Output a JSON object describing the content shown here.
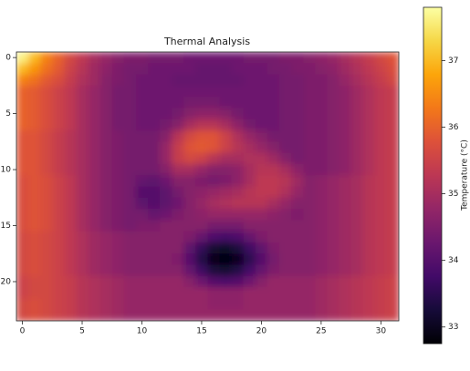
{
  "chart_data": {
    "type": "heatmap",
    "title": "Thermal Analysis",
    "cmap": "inferno",
    "xlim": [
      -0.5,
      31.5
    ],
    "ylim": [
      23.5,
      -0.5
    ],
    "xticks": [
      0,
      5,
      10,
      15,
      20,
      25,
      30
    ],
    "yticks": [
      0,
      5,
      10,
      15,
      20
    ],
    "colorbar": {
      "label": "Temperature (°C)",
      "lim": [
        32.75,
        37.8
      ],
      "ticks": [
        33,
        34,
        35,
        36,
        37
      ]
    },
    "z": [
      [
        37.6,
        37.0,
        36.4,
        36.0,
        35.6,
        35.3,
        35.0,
        34.8,
        34.6,
        34.5,
        34.5,
        34.4,
        34.4,
        34.4,
        34.3,
        34.3,
        34.3,
        34.3,
        34.3,
        34.4,
        34.4,
        34.4,
        34.5,
        34.5,
        34.6,
        34.7,
        34.8,
        35.0,
        35.2,
        35.4,
        35.6,
        35.8
      ],
      [
        37.0,
        36.6,
        36.2,
        35.9,
        35.5,
        35.2,
        34.9,
        34.7,
        34.5,
        34.4,
        34.4,
        34.3,
        34.3,
        34.3,
        34.3,
        34.2,
        34.2,
        34.2,
        34.3,
        34.3,
        34.3,
        34.4,
        34.4,
        34.5,
        34.5,
        34.6,
        34.7,
        34.9,
        35.1,
        35.3,
        35.5,
        35.7
      ],
      [
        36.4,
        36.2,
        35.9,
        35.7,
        35.4,
        35.1,
        34.9,
        34.6,
        34.5,
        34.4,
        34.3,
        34.3,
        34.3,
        34.2,
        34.2,
        34.2,
        34.2,
        34.2,
        34.2,
        34.3,
        34.3,
        34.3,
        34.4,
        34.4,
        34.5,
        34.5,
        34.6,
        34.8,
        35.0,
        35.2,
        35.4,
        35.6
      ],
      [
        36.0,
        35.9,
        35.7,
        35.5,
        35.3,
        35.0,
        34.8,
        34.6,
        34.4,
        34.4,
        34.3,
        34.3,
        34.3,
        34.3,
        34.3,
        34.3,
        34.3,
        34.3,
        34.3,
        34.3,
        34.3,
        34.3,
        34.4,
        34.4,
        34.5,
        34.5,
        34.6,
        34.7,
        34.9,
        35.1,
        35.3,
        35.4
      ],
      [
        36.0,
        35.9,
        35.7,
        35.5,
        35.3,
        35.0,
        34.8,
        34.6,
        34.4,
        34.4,
        34.3,
        34.3,
        34.3,
        34.3,
        34.4,
        34.4,
        34.4,
        34.3,
        34.3,
        34.3,
        34.3,
        34.3,
        34.4,
        34.4,
        34.5,
        34.5,
        34.6,
        34.7,
        34.9,
        35.1,
        35.3,
        35.4
      ],
      [
        36.0,
        35.9,
        35.7,
        35.5,
        35.3,
        35.0,
        34.8,
        34.6,
        34.4,
        34.4,
        34.3,
        34.3,
        34.3,
        34.4,
        34.6,
        34.7,
        34.7,
        34.6,
        34.4,
        34.3,
        34.3,
        34.3,
        34.4,
        34.4,
        34.5,
        34.5,
        34.6,
        34.7,
        34.9,
        35.1,
        35.3,
        35.4
      ],
      [
        36.0,
        35.9,
        35.7,
        35.5,
        35.3,
        35.0,
        34.8,
        34.6,
        34.4,
        34.4,
        34.3,
        34.3,
        34.4,
        34.6,
        35.0,
        35.2,
        35.2,
        35.0,
        34.7,
        34.4,
        34.3,
        34.3,
        34.4,
        34.4,
        34.5,
        34.5,
        34.6,
        34.7,
        34.9,
        35.1,
        35.3,
        35.4
      ],
      [
        35.8,
        35.8,
        35.6,
        35.4,
        35.2,
        35.0,
        34.8,
        34.6,
        34.5,
        34.4,
        34.4,
        34.4,
        34.6,
        35.2,
        35.6,
        35.8,
        35.8,
        35.5,
        35.1,
        34.8,
        34.6,
        34.4,
        34.4,
        34.4,
        34.5,
        34.5,
        34.6,
        34.7,
        34.9,
        35.1,
        35.3,
        35.4
      ],
      [
        35.8,
        35.8,
        35.6,
        35.4,
        35.2,
        35.0,
        34.8,
        34.6,
        34.5,
        34.4,
        34.4,
        34.4,
        34.8,
        35.4,
        35.8,
        35.9,
        35.8,
        35.5,
        35.2,
        35.0,
        34.8,
        34.6,
        34.4,
        34.4,
        34.5,
        34.5,
        34.6,
        34.7,
        34.9,
        35.1,
        35.3,
        35.4
      ],
      [
        35.8,
        35.8,
        35.6,
        35.4,
        35.2,
        35.0,
        34.8,
        34.6,
        34.5,
        34.4,
        34.4,
        34.4,
        34.8,
        35.4,
        35.6,
        35.5,
        35.2,
        35.0,
        35.0,
        35.1,
        35.1,
        34.9,
        34.6,
        34.4,
        34.5,
        34.5,
        34.6,
        34.7,
        34.9,
        35.1,
        35.3,
        35.4
      ],
      [
        35.8,
        35.8,
        35.6,
        35.4,
        35.2,
        35.0,
        34.8,
        34.6,
        34.5,
        34.4,
        34.4,
        34.4,
        34.6,
        35.0,
        35.0,
        34.8,
        34.6,
        34.6,
        34.7,
        35.0,
        35.2,
        35.2,
        35.0,
        34.7,
        34.5,
        34.5,
        34.6,
        34.7,
        34.9,
        35.1,
        35.3,
        35.4
      ],
      [
        35.7,
        35.8,
        35.7,
        35.5,
        35.3,
        35.0,
        34.8,
        34.6,
        34.5,
        34.4,
        34.2,
        34.1,
        34.3,
        34.6,
        34.6,
        34.5,
        34.4,
        34.5,
        34.7,
        35.0,
        35.3,
        35.3,
        35.2,
        34.9,
        34.6,
        34.7,
        34.8,
        34.9,
        35.0,
        35.2,
        35.3,
        35.4
      ],
      [
        35.7,
        35.8,
        35.7,
        35.5,
        35.3,
        35.0,
        34.8,
        34.6,
        34.5,
        34.4,
        34.0,
        34.0,
        34.1,
        34.4,
        34.6,
        34.7,
        34.8,
        34.9,
        35.0,
        35.2,
        35.3,
        35.3,
        35.1,
        34.8,
        34.6,
        34.7,
        34.8,
        34.9,
        35.0,
        35.2,
        35.3,
        35.4
      ],
      [
        35.7,
        35.8,
        35.7,
        35.5,
        35.3,
        35.0,
        34.8,
        34.6,
        34.5,
        34.4,
        34.1,
        34.0,
        34.1,
        34.3,
        34.6,
        34.8,
        35.0,
        35.1,
        35.2,
        35.2,
        35.2,
        35.0,
        34.8,
        34.6,
        34.6,
        34.7,
        34.8,
        34.9,
        35.0,
        35.2,
        35.3,
        35.4
      ],
      [
        35.7,
        35.8,
        35.7,
        35.5,
        35.3,
        35.0,
        34.8,
        34.6,
        34.5,
        34.4,
        34.4,
        34.2,
        34.3,
        34.5,
        34.6,
        34.7,
        34.8,
        34.8,
        34.8,
        34.8,
        34.8,
        34.7,
        34.6,
        34.5,
        34.6,
        34.7,
        34.8,
        34.9,
        35.0,
        35.2,
        35.3,
        35.4
      ],
      [
        35.7,
        35.8,
        35.7,
        35.5,
        35.3,
        35.0,
        34.8,
        34.6,
        34.5,
        34.4,
        34.5,
        34.5,
        34.6,
        34.6,
        34.6,
        34.6,
        34.4,
        34.4,
        34.4,
        34.6,
        34.6,
        34.6,
        34.6,
        34.6,
        34.6,
        34.7,
        34.8,
        34.9,
        35.0,
        35.2,
        35.3,
        35.4
      ],
      [
        35.6,
        35.7,
        35.6,
        35.5,
        35.3,
        35.1,
        34.9,
        34.8,
        34.7,
        34.6,
        34.6,
        34.6,
        34.6,
        34.6,
        34.5,
        34.2,
        33.9,
        33.8,
        33.9,
        34.2,
        34.5,
        34.6,
        34.6,
        34.6,
        34.6,
        34.7,
        34.8,
        34.9,
        35.0,
        35.2,
        35.3,
        35.4
      ],
      [
        35.6,
        35.7,
        35.6,
        35.5,
        35.3,
        35.1,
        34.9,
        34.8,
        34.7,
        34.6,
        34.6,
        34.6,
        34.6,
        34.6,
        34.1,
        33.6,
        33.2,
        33.1,
        33.3,
        33.7,
        34.1,
        34.5,
        34.6,
        34.6,
        34.6,
        34.7,
        34.8,
        34.9,
        35.0,
        35.2,
        35.3,
        35.4
      ],
      [
        35.6,
        35.7,
        35.6,
        35.5,
        35.3,
        35.1,
        34.9,
        34.8,
        34.7,
        34.6,
        34.6,
        34.6,
        34.6,
        34.5,
        34.0,
        33.4,
        32.9,
        32.8,
        33.0,
        33.5,
        34.0,
        34.4,
        34.6,
        34.6,
        34.6,
        34.7,
        34.8,
        34.9,
        35.0,
        35.2,
        35.3,
        35.4
      ],
      [
        35.6,
        35.7,
        35.6,
        35.5,
        35.3,
        35.1,
        34.9,
        34.8,
        34.7,
        34.6,
        34.6,
        34.6,
        34.6,
        34.6,
        34.2,
        33.7,
        33.3,
        33.2,
        33.4,
        33.8,
        34.2,
        34.5,
        34.6,
        34.6,
        34.6,
        34.7,
        34.8,
        34.9,
        35.0,
        35.2,
        35.3,
        35.4
      ],
      [
        35.5,
        35.6,
        35.6,
        35.5,
        35.4,
        35.2,
        35.1,
        35.0,
        34.9,
        34.8,
        34.8,
        34.8,
        34.8,
        34.8,
        34.6,
        34.3,
        34.0,
        33.9,
        34.0,
        34.3,
        34.6,
        34.8,
        34.8,
        34.8,
        34.8,
        34.9,
        35.0,
        35.1,
        35.2,
        35.3,
        35.4,
        35.5
      ],
      [
        35.5,
        35.6,
        35.6,
        35.5,
        35.4,
        35.2,
        35.1,
        35.0,
        34.9,
        34.8,
        34.8,
        34.8,
        34.8,
        34.8,
        34.8,
        34.8,
        34.7,
        34.7,
        34.7,
        34.8,
        34.8,
        34.8,
        34.8,
        34.8,
        34.8,
        34.9,
        35.0,
        35.1,
        35.2,
        35.3,
        35.4,
        35.5
      ],
      [
        35.6,
        35.7,
        35.6,
        35.5,
        35.4,
        35.2,
        35.1,
        35.0,
        34.9,
        34.8,
        34.8,
        34.8,
        34.8,
        34.8,
        34.8,
        34.8,
        34.7,
        34.7,
        34.7,
        34.8,
        34.8,
        34.8,
        34.8,
        34.8,
        34.8,
        34.9,
        35.0,
        35.1,
        35.2,
        35.3,
        35.4,
        35.5
      ],
      [
        35.6,
        35.7,
        35.6,
        35.5,
        35.4,
        35.2,
        35.1,
        35.0,
        34.9,
        34.8,
        34.8,
        34.8,
        34.8,
        34.8,
        34.8,
        34.8,
        34.8,
        34.8,
        34.8,
        34.8,
        34.8,
        34.8,
        34.8,
        34.8,
        34.8,
        34.9,
        35.0,
        35.1,
        35.2,
        35.3,
        35.4,
        35.5
      ]
    ]
  }
}
